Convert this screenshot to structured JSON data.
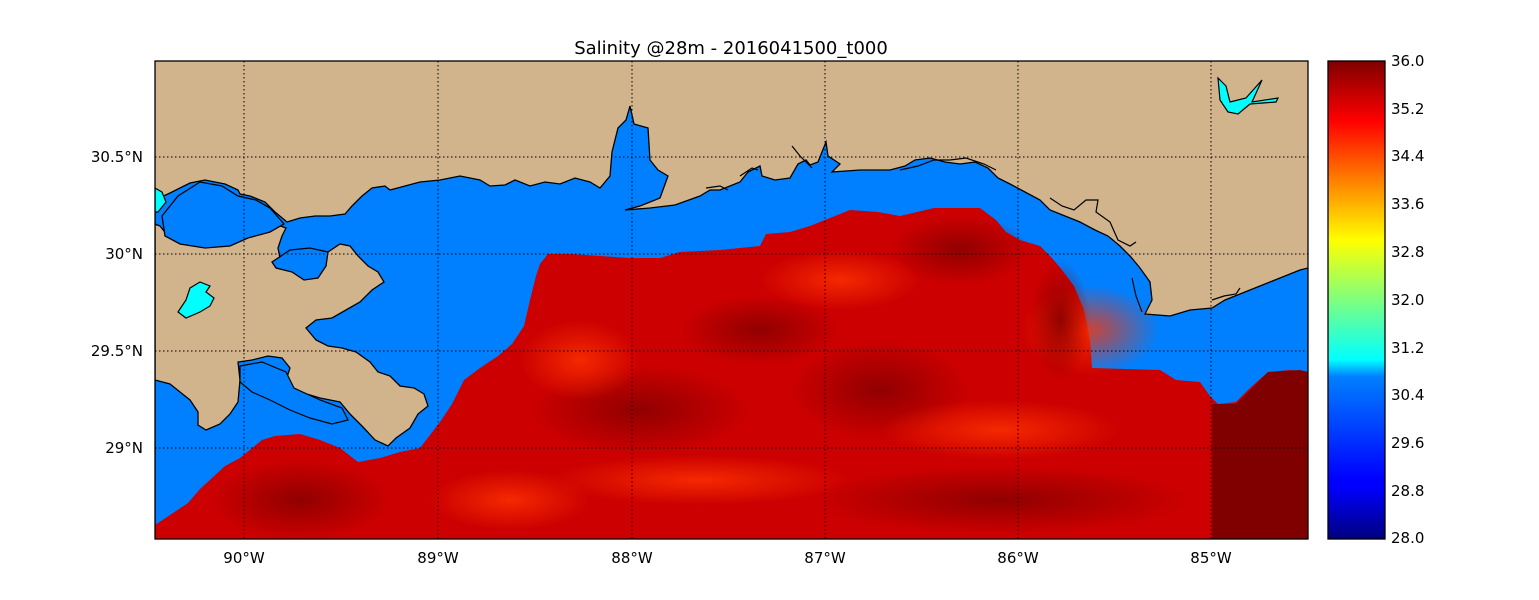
{
  "title": "Salinity @28m - 2016041500_t000",
  "x_ticks": [
    "90°W",
    "89°W",
    "88°W",
    "87°W",
    "86°W",
    "85°W"
  ],
  "y_ticks": [
    "30.5°N",
    "30°N",
    "29.5°N",
    "29°N"
  ],
  "colorbar": {
    "ticks": [
      "36.0",
      "35.2",
      "34.4",
      "33.6",
      "32.8",
      "32.0",
      "31.2",
      "30.4",
      "29.6",
      "28.8",
      "28.0"
    ],
    "min": 28.0,
    "max": 36.0,
    "colormap": "jet"
  },
  "colors": {
    "land": "#d2b48c",
    "shelf_water": "#0080ff",
    "inland_water": "#00ffff",
    "salinity_low": "#cc0000",
    "salinity_high": "#800000"
  },
  "chart_data": {
    "type": "heatmap",
    "variable": "Salinity",
    "depth": "28m",
    "timestamp": "2016041500_t000",
    "lon_range": [
      -90.47,
      -84.5
    ],
    "lat_range": [
      28.54,
      31.0
    ],
    "value_range_shown": [
      34.8,
      36.0
    ]
  }
}
